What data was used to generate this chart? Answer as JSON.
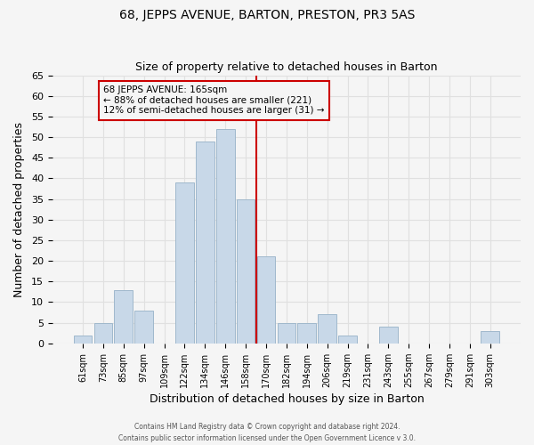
{
  "title": "68, JEPPS AVENUE, BARTON, PRESTON, PR3 5AS",
  "subtitle": "Size of property relative to detached houses in Barton",
  "xlabel": "Distribution of detached houses by size in Barton",
  "ylabel": "Number of detached properties",
  "bar_color": "#c8d8e8",
  "bar_edge_color": "#a0b8cc",
  "bins": [
    "61sqm",
    "73sqm",
    "85sqm",
    "97sqm",
    "109sqm",
    "122sqm",
    "134sqm",
    "146sqm",
    "158sqm",
    "170sqm",
    "182sqm",
    "194sqm",
    "206sqm",
    "219sqm",
    "231sqm",
    "243sqm",
    "255sqm",
    "267sqm",
    "279sqm",
    "291sqm",
    "303sqm"
  ],
  "values": [
    2,
    5,
    13,
    8,
    0,
    39,
    49,
    52,
    35,
    21,
    5,
    5,
    7,
    2,
    0,
    4,
    0,
    0,
    0,
    0,
    3
  ],
  "property_line_x": 8.5,
  "property_size": "165sqm",
  "annotation_line1": "68 JEPPS AVENUE: 165sqm",
  "annotation_line2": "← 88% of detached houses are smaller (221)",
  "annotation_line3": "12% of semi-detached houses are larger (31) →",
  "ylim": [
    0,
    65
  ],
  "yticks": [
    0,
    5,
    10,
    15,
    20,
    25,
    30,
    35,
    40,
    45,
    50,
    55,
    60,
    65
  ],
  "footer1": "Contains HM Land Registry data © Crown copyright and database right 2024.",
  "footer2": "Contains public sector information licensed under the Open Government Licence v 3.0.",
  "grid_color": "#e0e0e0",
  "annotation_box_edge": "#cc0000",
  "property_line_color": "#cc0000",
  "background_color": "#f5f5f5"
}
